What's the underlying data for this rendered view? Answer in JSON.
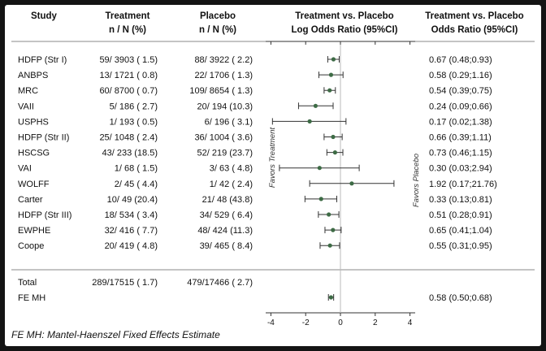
{
  "headers": {
    "study": "Study",
    "treatment": "Treatment",
    "treatment_sub": "n / N (%)",
    "placebo": "Placebo",
    "placebo_sub": "n / N (%)",
    "lor_title": "Treatment vs. Placebo",
    "lor_sub": "Log Odds Ratio (95%CI)",
    "or_title": "Treatment vs. Placebo",
    "or_sub": "Odds Ratio (95%CI)"
  },
  "favors_treatment": "Favors Treatment",
  "favors_placebo": "Favors Placebo",
  "footnote": "FE MH: Mantel-Haenszel Fixed Effects Estimate",
  "colors": {
    "frame": "#141414",
    "point": "#3d6b45",
    "line": "#333333",
    "divider": "#b0b0b0"
  },
  "chart_data": {
    "type": "forest",
    "x_axis": {
      "label": "",
      "ticks": [
        -4,
        -2,
        0,
        2,
        4
      ],
      "tick_labels": [
        "-4",
        "-2",
        "0",
        "2",
        "4"
      ],
      "range": [
        -4.3,
        4.3
      ]
    },
    "studies": [
      {
        "study": "HDFP (Str I)",
        "treatment": "59/ 3903 ( 1.5)",
        "placebo": "88/ 3922 ( 2.2)",
        "lor": -0.4,
        "lo": -0.73,
        "hi": -0.07,
        "or_text": "0.67 (0.48;0.93)"
      },
      {
        "study": "ANBPS",
        "treatment": "13/ 1721 ( 0.8)",
        "placebo": "22/ 1706 ( 1.3)",
        "lor": -0.54,
        "lo": -1.24,
        "hi": 0.15,
        "or_text": "0.58 (0.29;1.16)"
      },
      {
        "study": "MRC",
        "treatment": "60/ 8700 ( 0.7)",
        "placebo": "109/ 8654 ( 1.3)",
        "lor": -0.62,
        "lo": -0.94,
        "hi": -0.29,
        "or_text": "0.54 (0.39;0.75)"
      },
      {
        "study": "VAII",
        "treatment": "5/ 186 ( 2.7)",
        "placebo": "20/ 194 (10.3)",
        "lor": -1.43,
        "lo": -2.41,
        "hi": -0.42,
        "or_text": "0.24 (0.09;0.66)"
      },
      {
        "study": "USPHS",
        "treatment": "1/ 193 ( 0.5)",
        "placebo": "6/ 196 ( 3.1)",
        "lor": -1.77,
        "lo": -3.91,
        "hi": 0.32,
        "or_text": "0.17 (0.02;1.38)"
      },
      {
        "study": "HDFP (Str II)",
        "treatment": "25/ 1048 ( 2.4)",
        "placebo": "36/ 1004 ( 3.6)",
        "lor": -0.42,
        "lo": -0.94,
        "hi": 0.1,
        "or_text": "0.66 (0.39;1.11)"
      },
      {
        "study": "HSCSG",
        "treatment": "43/ 233 (18.5)",
        "placebo": "52/ 219 (23.7)",
        "lor": -0.31,
        "lo": -0.78,
        "hi": 0.14,
        "or_text": "0.73 (0.46;1.15)"
      },
      {
        "study": "VAI",
        "treatment": "1/ 68 ( 1.5)",
        "placebo": "3/ 63 ( 4.8)",
        "lor": -1.2,
        "lo": -3.51,
        "hi": 1.08,
        "or_text": "0.30 (0.03;2.94)"
      },
      {
        "study": "WOLFF",
        "treatment": "2/ 45 ( 4.4)",
        "placebo": "1/ 42 ( 2.4)",
        "lor": 0.65,
        "lo": -1.77,
        "hi": 3.08,
        "or_text": "1.92 (0.17;21.76)"
      },
      {
        "study": "Carter",
        "treatment": "10/ 49 (20.4)",
        "placebo": "21/ 48 (43.8)",
        "lor": -1.11,
        "lo": -2.04,
        "hi": -0.21,
        "or_text": "0.33 (0.13;0.81)"
      },
      {
        "study": "HDFP (Str III)",
        "treatment": "18/ 534 ( 3.4)",
        "placebo": "34/ 529 ( 6.4)",
        "lor": -0.67,
        "lo": -1.27,
        "hi": -0.09,
        "or_text": "0.51 (0.28;0.91)"
      },
      {
        "study": "EWPHE",
        "treatment": "32/ 416 ( 7.7)",
        "placebo": "48/ 424 (11.3)",
        "lor": -0.43,
        "lo": -0.89,
        "hi": 0.04,
        "or_text": "0.65 (0.41;1.04)"
      },
      {
        "study": "Coope",
        "treatment": "20/ 419 ( 4.8)",
        "placebo": "39/ 465 ( 8.4)",
        "lor": -0.6,
        "lo": -1.17,
        "hi": -0.05,
        "or_text": "0.55 (0.31;0.95)"
      }
    ],
    "total": {
      "study": "Total",
      "treatment": "289/17515 ( 1.7)",
      "placebo": "479/17466 ( 2.7)"
    },
    "pooled": {
      "study": "FE MH",
      "lor": -0.54,
      "lo": -0.69,
      "hi": -0.39,
      "or_text": "0.58 (0.50;0.68)"
    }
  }
}
